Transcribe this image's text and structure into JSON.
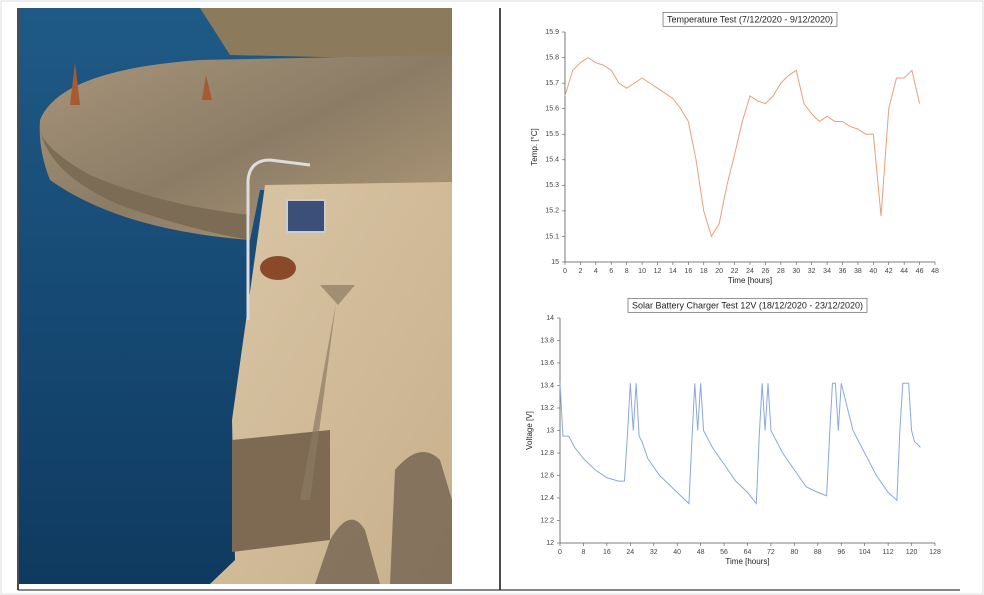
{
  "chart_data": [
    {
      "type": "line",
      "title": "Temperature Test (7/12/2020 - 9/12/2020)",
      "xlabel": "Time [hours]",
      "ylabel": "Temp. [°C]",
      "x": [
        0,
        1,
        2,
        3,
        4,
        5,
        6,
        7,
        8,
        9,
        10,
        11,
        12,
        13,
        14,
        15,
        16,
        17,
        18,
        19,
        20,
        21,
        22,
        23,
        24,
        25,
        26,
        27,
        28,
        29,
        30,
        31,
        32,
        33,
        34,
        35,
        36,
        37,
        38,
        39,
        40,
        41,
        42,
        43,
        44,
        45,
        46
      ],
      "series": [
        {
          "color": "#e8a07a",
          "values": [
            15.65,
            15.75,
            15.78,
            15.8,
            15.78,
            15.77,
            15.75,
            15.7,
            15.68,
            15.7,
            15.72,
            15.7,
            15.68,
            15.66,
            15.64,
            15.6,
            15.55,
            15.4,
            15.2,
            15.1,
            15.15,
            15.3,
            15.42,
            15.55,
            15.65,
            15.63,
            15.62,
            15.65,
            15.7,
            15.73,
            15.75,
            15.62,
            15.58,
            15.55,
            15.57,
            15.55,
            15.55,
            15.53,
            15.52,
            15.5,
            15.5,
            15.18,
            15.6,
            15.72,
            15.72,
            15.75,
            15.62
          ]
        }
      ],
      "xlim": [
        0,
        48
      ],
      "xticks": [
        0,
        2,
        4,
        6,
        8,
        10,
        12,
        14,
        16,
        18,
        20,
        22,
        24,
        26,
        28,
        30,
        32,
        34,
        36,
        38,
        40,
        42,
        44,
        46,
        48
      ],
      "ylim": [
        15,
        15.9
      ],
      "yticks": [
        15,
        15.1,
        15.2,
        15.3,
        15.4,
        15.5,
        15.6,
        15.7,
        15.8,
        15.9
      ]
    },
    {
      "type": "line",
      "title": "Solar Battery Charger Test 12V (18/12/2020 - 23/12/2020)",
      "xlabel": "Time [hours]",
      "ylabel": "Voltage [V]",
      "x": [
        0,
        1,
        3,
        5,
        8,
        12,
        16,
        20,
        22,
        23,
        24,
        25,
        26,
        27,
        28,
        30,
        34,
        38,
        42,
        44,
        45,
        46,
        47,
        48,
        49,
        52,
        56,
        60,
        64,
        67,
        68,
        69,
        70,
        71,
        72,
        76,
        80,
        84,
        88,
        91,
        92,
        93,
        94,
        95,
        96,
        100,
        104,
        108,
        112,
        115,
        116,
        117,
        118,
        119,
        120,
        121,
        122,
        123
      ],
      "series": [
        {
          "color": "#8aa8e0",
          "values": [
            13.42,
            12.95,
            12.95,
            12.85,
            12.75,
            12.65,
            12.58,
            12.55,
            12.55,
            12.95,
            13.42,
            13.0,
            13.42,
            12.95,
            12.9,
            12.75,
            12.6,
            12.5,
            12.4,
            12.35,
            12.9,
            13.42,
            13.0,
            13.42,
            13.0,
            12.85,
            12.7,
            12.55,
            12.45,
            12.35,
            12.95,
            13.42,
            13.0,
            13.42,
            13.0,
            12.8,
            12.65,
            12.5,
            12.45,
            12.42,
            12.95,
            13.42,
            13.42,
            13.0,
            13.42,
            13.0,
            12.8,
            12.6,
            12.45,
            12.38,
            13.0,
            13.42,
            13.42,
            13.42,
            13.0,
            12.9,
            12.88,
            12.85
          ]
        }
      ],
      "xlim": [
        0,
        128
      ],
      "xticks": [
        0,
        8,
        16,
        24,
        32,
        40,
        48,
        56,
        64,
        72,
        80,
        88,
        96,
        104,
        112,
        120,
        128
      ],
      "ylim": [
        12,
        14
      ],
      "yticks": [
        12,
        12.2,
        12.4,
        12.6,
        12.8,
        13,
        13.2,
        13.4,
        13.6,
        13.8,
        14
      ]
    }
  ]
}
